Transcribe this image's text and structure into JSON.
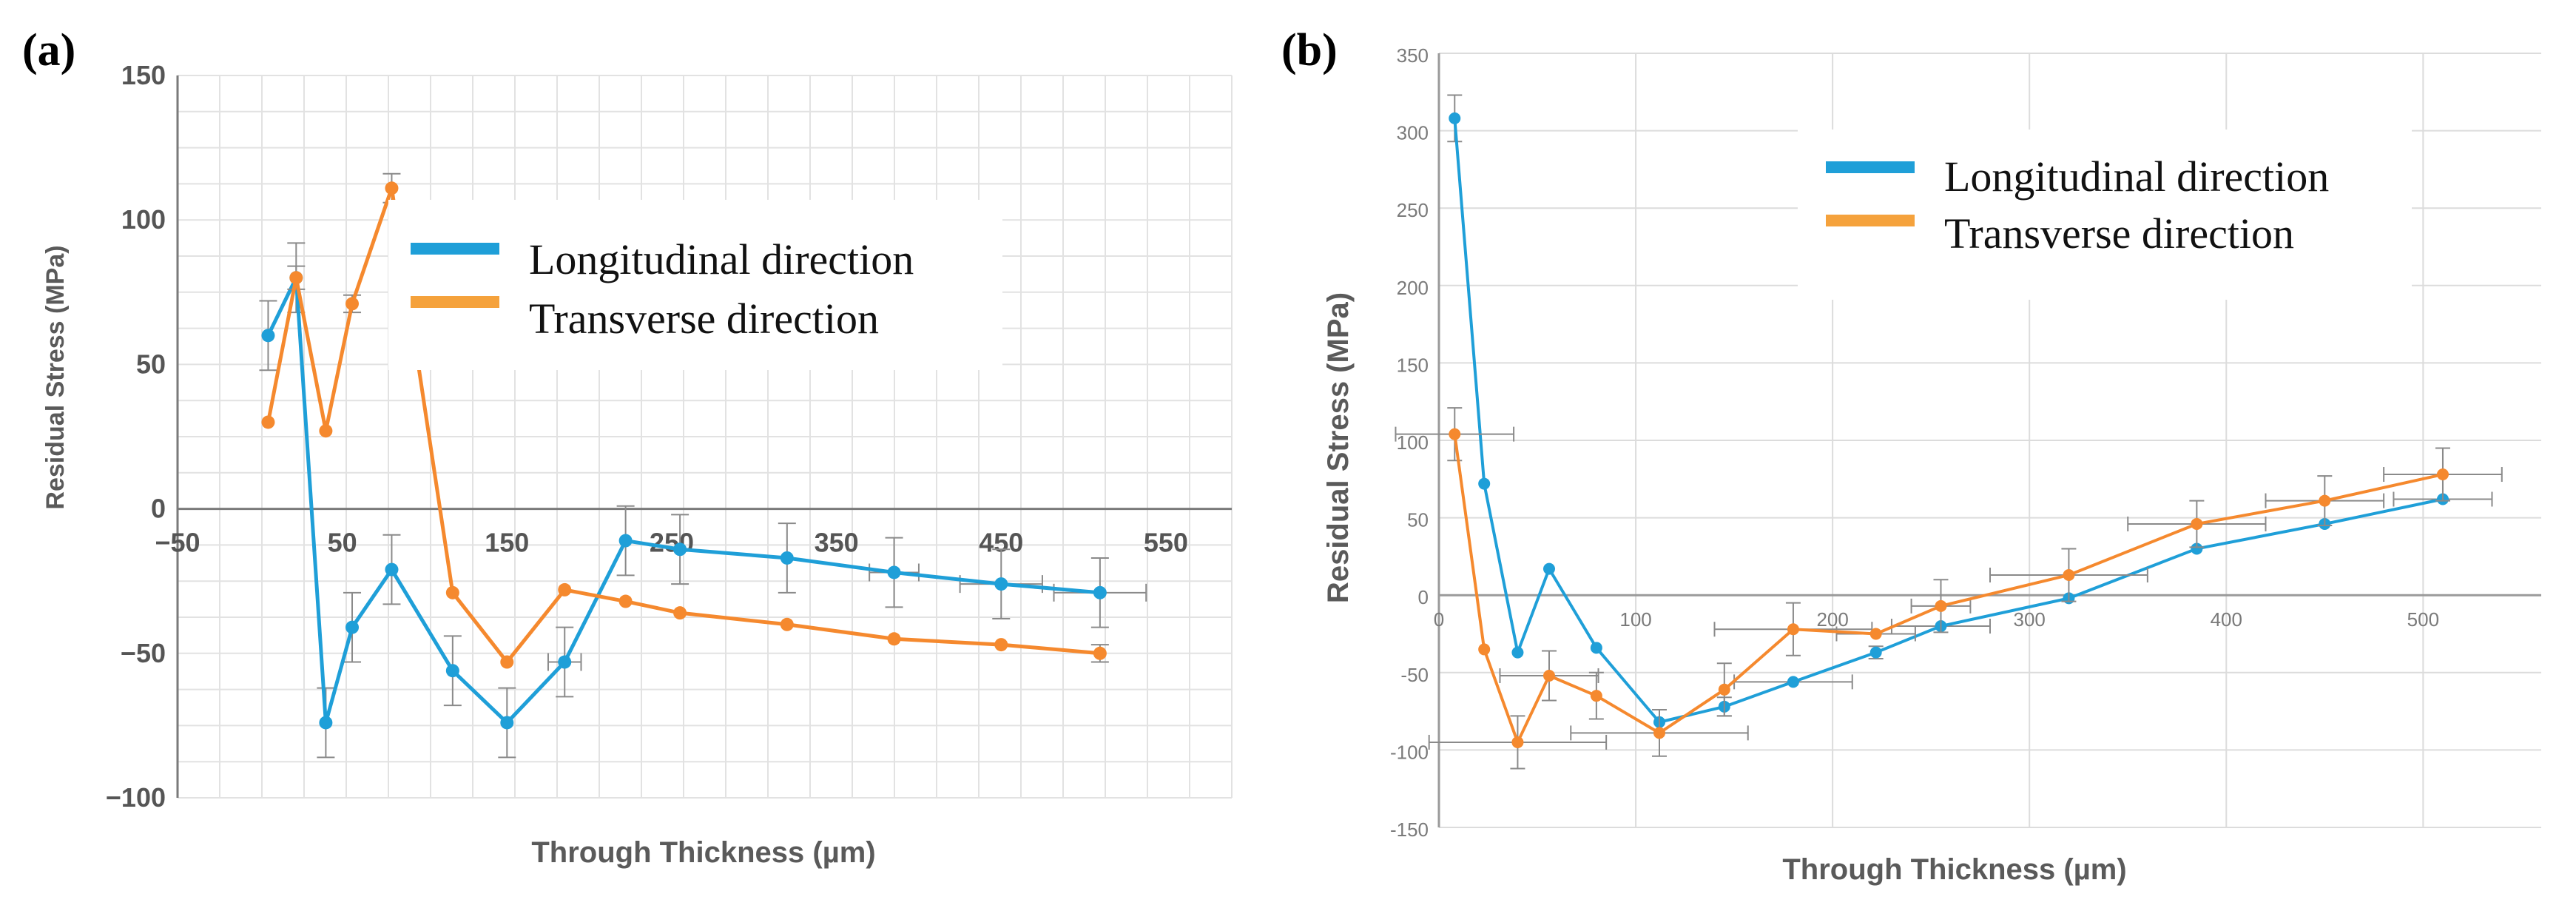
{
  "chart_data": [
    {
      "panel_label": "(a)",
      "type": "line",
      "title": "",
      "xlabel": "Through Thickness (µm)",
      "ylabel": "Residual Stress (MPa)",
      "xlim": [
        -50,
        590
      ],
      "ylim": [
        -100,
        150
      ],
      "xticks": [
        -50,
        50,
        150,
        250,
        350,
        450,
        550
      ],
      "xtick_labels": [
        "−50",
        "50",
        "150",
        "250",
        "350",
        "450",
        "550"
      ],
      "yticks": [
        -100,
        -50,
        0,
        50,
        100,
        150
      ],
      "ytick_labels": [
        "−100",
        "−50",
        "0",
        "50",
        "100",
        "150"
      ],
      "grid": true,
      "legend": {
        "position": "top-center",
        "entries": [
          "Longitudinal direction",
          "Transverse direction"
        ]
      },
      "series": [
        {
          "name": "Longitudinal direction",
          "color": "#1f9fd8",
          "x": [
            5,
            22,
            40,
            56,
            80,
            117,
            150,
            185,
            222,
            255,
            320,
            385,
            450,
            510
          ],
          "y": [
            60,
            80,
            -74,
            -41,
            -21,
            -56,
            -74,
            -53,
            -11,
            -14,
            -17,
            -22,
            -26,
            -29
          ],
          "yerr": [
            12,
            12,
            12,
            12,
            12,
            12,
            12,
            12,
            12,
            12,
            12,
            12,
            12,
            12
          ],
          "xerr": [
            0,
            0,
            0,
            0,
            0,
            0,
            0,
            10,
            0,
            0,
            0,
            15,
            25,
            28
          ]
        },
        {
          "name": "Transverse direction",
          "color": "#f5892e",
          "x": [
            5,
            22,
            40,
            56,
            80,
            117,
            150,
            185,
            222,
            255,
            320,
            385,
            450,
            510
          ],
          "y": [
            30,
            80,
            27,
            71,
            111,
            -29,
            -53,
            -28,
            -32,
            -36,
            -40,
            -45,
            -47,
            -50
          ],
          "yerr": [
            0,
            4,
            0,
            3,
            5,
            0,
            0,
            0,
            0,
            0,
            0,
            0,
            0,
            3
          ],
          "xerr": [
            0,
            0,
            0,
            0,
            0,
            0,
            0,
            0,
            0,
            0,
            0,
            0,
            0,
            0
          ]
        }
      ]
    },
    {
      "panel_label": "(b)",
      "type": "line",
      "title": "",
      "xlabel": "Through Thickness (µm)",
      "ylabel": "Residual Stress (MPa)",
      "xlim": [
        0,
        560
      ],
      "ylim": [
        -150,
        350
      ],
      "xticks": [
        0,
        100,
        200,
        300,
        400,
        500
      ],
      "xtick_labels": [
        "0",
        "100",
        "200",
        "300",
        "400",
        "500"
      ],
      "yticks": [
        -150,
        -100,
        -50,
        0,
        50,
        100,
        150,
        200,
        250,
        300,
        350
      ],
      "ytick_labels": [
        "-150",
        "-100",
        "-50",
        "0",
        "50",
        "100",
        "150",
        "200",
        "250",
        "300",
        "350"
      ],
      "grid": true,
      "legend": {
        "position": "top-right",
        "entries": [
          "Longitudinal direction",
          "Transverse direction"
        ]
      },
      "series": [
        {
          "name": "Longitudinal direction",
          "color": "#1f9fd8",
          "x": [
            8,
            23,
            40,
            56,
            80,
            112,
            145,
            180,
            222,
            255,
            320,
            385,
            450,
            510
          ],
          "y": [
            308,
            72,
            -37,
            17,
            -34,
            -82,
            -72,
            -56,
            -37,
            -20,
            -2,
            30,
            46,
            62
          ],
          "yerr": [
            15,
            0,
            0,
            0,
            0,
            0,
            6,
            0,
            4,
            0,
            0,
            0,
            0,
            0
          ],
          "xerr": [
            0,
            0,
            0,
            0,
            0,
            0,
            0,
            30,
            0,
            25,
            0,
            0,
            0,
            25
          ]
        },
        {
          "name": "Transverse direction",
          "color": "#f5892e",
          "x": [
            8,
            23,
            40,
            56,
            80,
            112,
            145,
            180,
            222,
            255,
            320,
            385,
            450,
            510
          ],
          "y": [
            104,
            -35,
            -95,
            -52,
            -65,
            -89,
            -61,
            -22,
            -25,
            -7,
            13,
            46,
            61,
            78
          ],
          "yerr": [
            17,
            0,
            17,
            16,
            15,
            15,
            17,
            17,
            0,
            17,
            17,
            15,
            16,
            17
          ],
          "xerr": [
            30,
            0,
            45,
            25,
            0,
            45,
            0,
            40,
            20,
            15,
            40,
            35,
            30,
            30
          ]
        }
      ]
    }
  ]
}
